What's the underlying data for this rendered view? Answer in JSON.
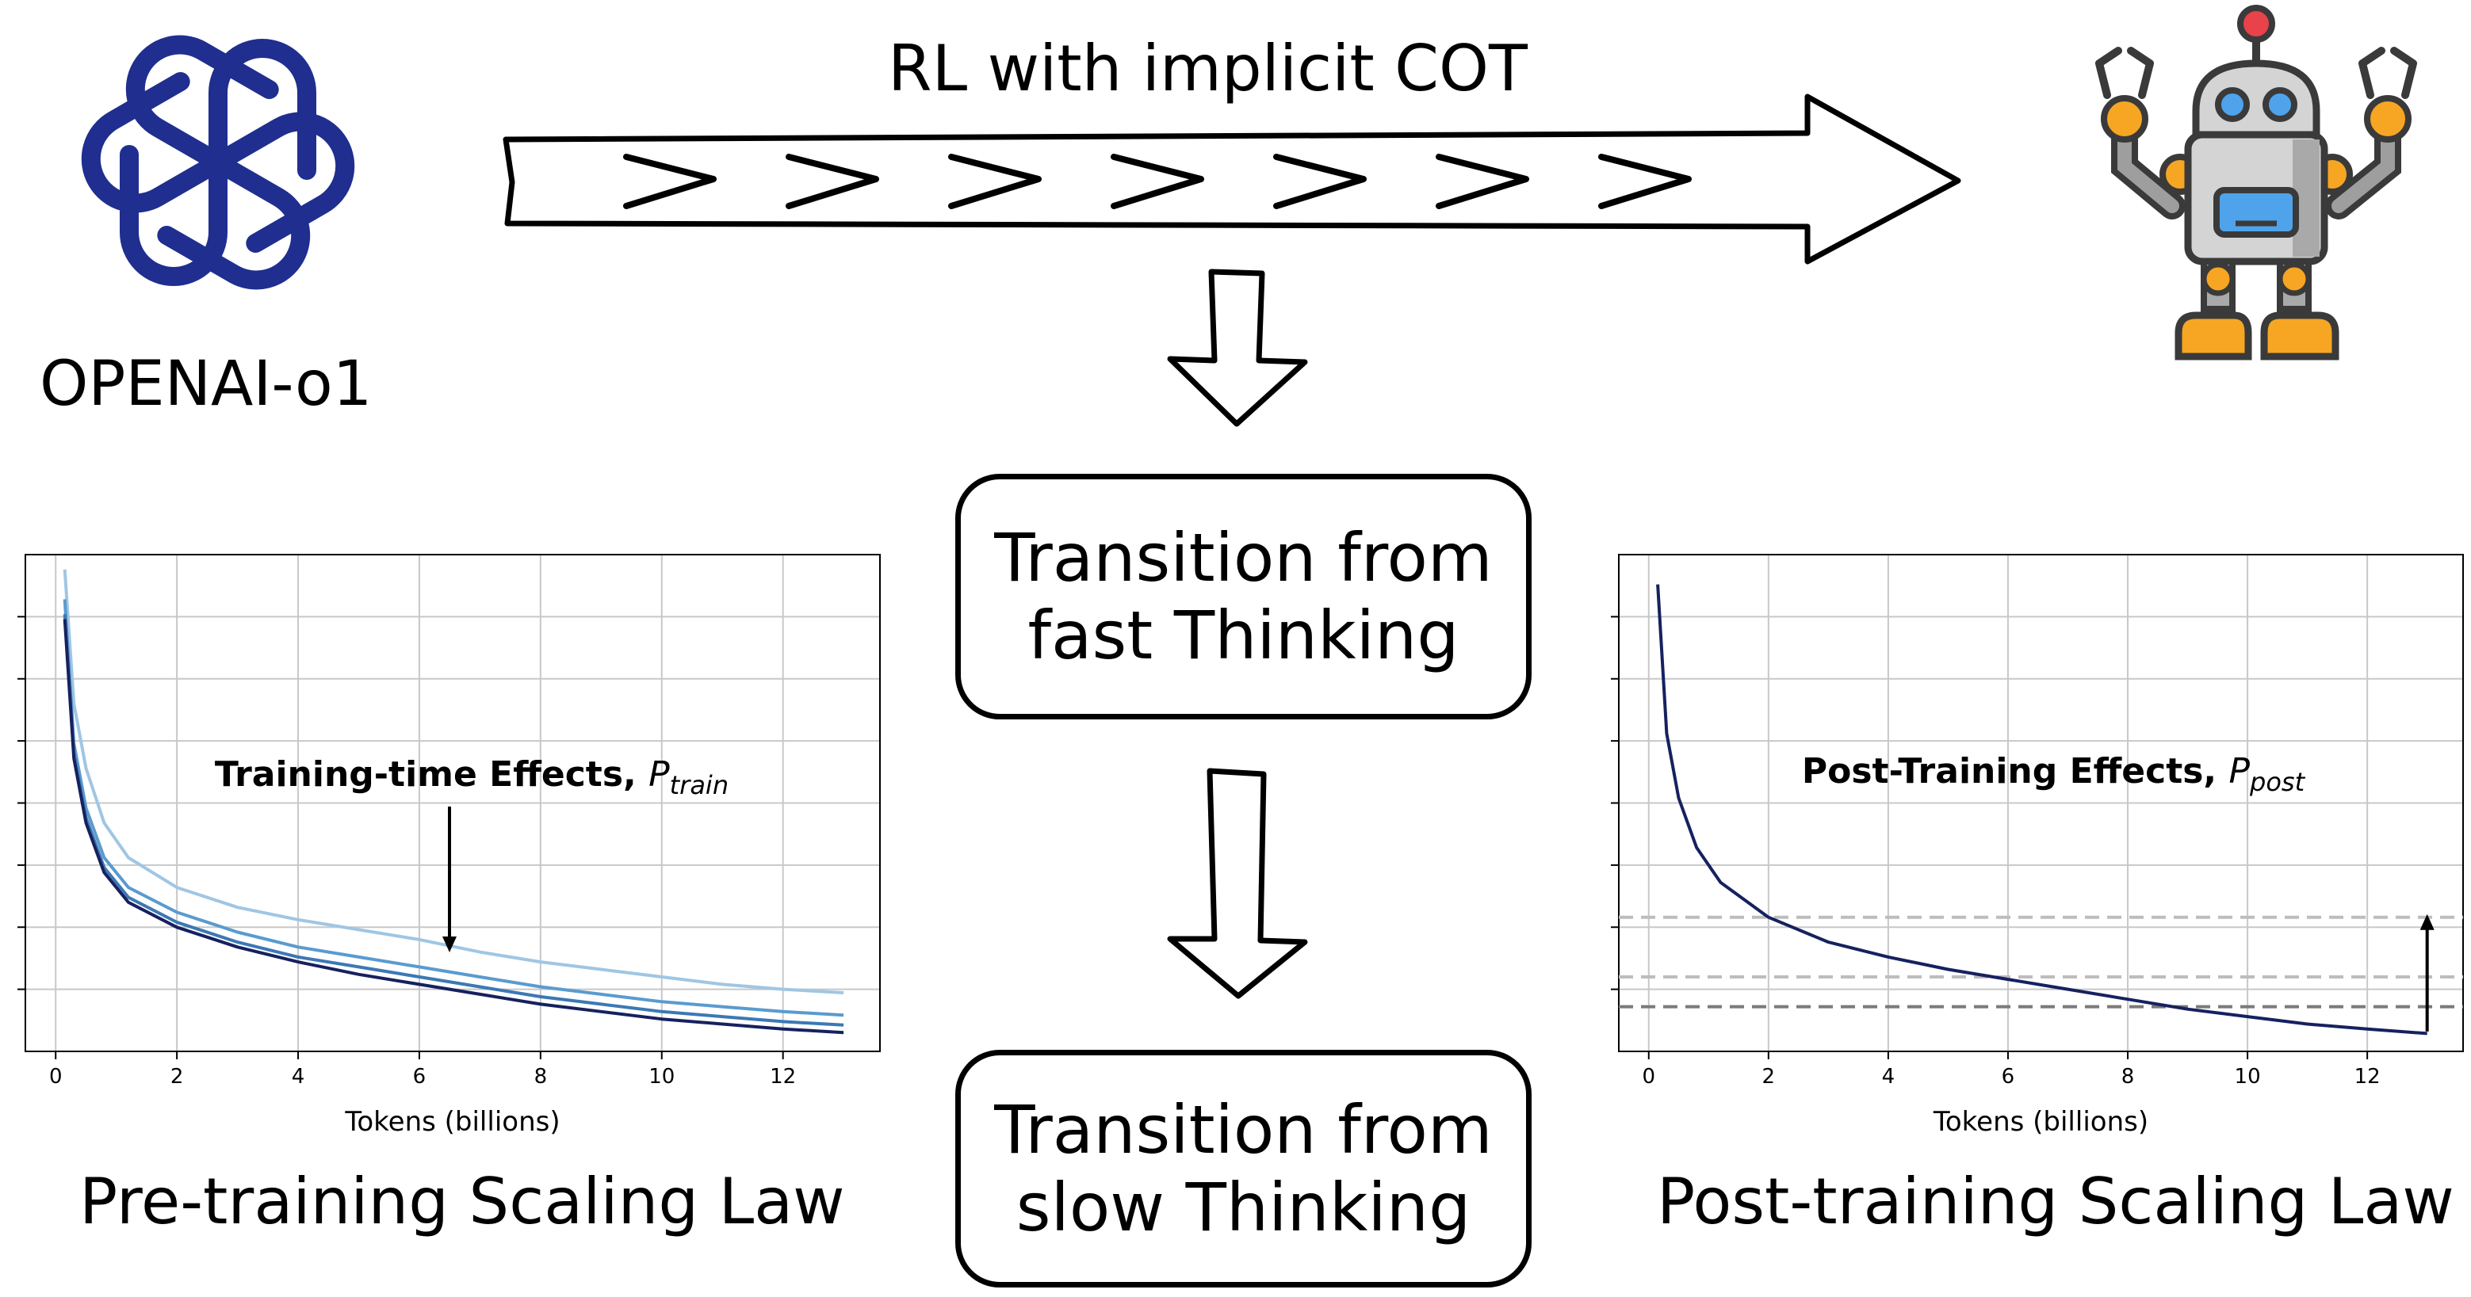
{
  "logo": {
    "label": "OPENAI-o1"
  },
  "top_arrow": {
    "label": "RL with implicit COT"
  },
  "boxes": [
    {
      "line1": "Transition from",
      "line2": "fast Thinking"
    },
    {
      "line1": "Transition from",
      "line2": "slow Thinking"
    }
  ],
  "colors": {
    "openai_blue": "#1f2e8f",
    "series_light": "#9fc6e4",
    "series_mid": "#5a9bcf",
    "series_dark": "#16215f",
    "robot_orange": "#f6a623",
    "robot_gray": "#d4d4d4",
    "robot_screen": "#4fa3ea",
    "robot_antenna": "#e8424a"
  },
  "charts": [
    {
      "caption": "Pre-training Scaling Law",
      "annotation": "Training-time Effects,",
      "annotation_symbol": "P",
      "annotation_sub": "train",
      "chart_data": {
        "type": "line",
        "xlabel": "Tokens (billions)",
        "ylabel": "",
        "xticks": [
          "0",
          "2",
          "4",
          "6",
          "8",
          "10",
          "12"
        ],
        "xlim": [
          -0.5,
          13.6
        ],
        "ylim": [
          0,
          1
        ],
        "grid": true,
        "series": [
          {
            "color": "#9fc6e4",
            "x": [
              0.15,
              0.3,
              0.5,
              0.8,
              1.2,
              2,
              3,
              4,
              5,
              6,
              7,
              8,
              9,
              10,
              11,
              12,
              13
            ],
            "y": [
              0.97,
              0.7,
              0.57,
              0.46,
              0.39,
              0.33,
              0.29,
              0.265,
              0.245,
              0.225,
              0.2,
              0.18,
              0.165,
              0.15,
              0.135,
              0.125,
              0.118
            ]
          },
          {
            "color": "#5a9bcf",
            "x": [
              0.15,
              0.3,
              0.5,
              0.8,
              1.2,
              2,
              3,
              4,
              5,
              6,
              7,
              8,
              9,
              10,
              11,
              12,
              13
            ],
            "y": [
              0.91,
              0.62,
              0.49,
              0.39,
              0.33,
              0.28,
              0.24,
              0.21,
              0.19,
              0.17,
              0.15,
              0.13,
              0.115,
              0.1,
              0.09,
              0.08,
              0.073
            ]
          },
          {
            "color": "#3c78b4",
            "x": [
              0.15,
              0.3,
              0.5,
              0.8,
              1.2,
              2,
              3,
              4,
              5,
              6,
              7,
              8,
              9,
              10,
              11,
              12,
              13
            ],
            "y": [
              0.88,
              0.6,
              0.47,
              0.37,
              0.31,
              0.26,
              0.22,
              0.19,
              0.17,
              0.15,
              0.13,
              0.11,
              0.095,
              0.08,
              0.07,
              0.06,
              0.053
            ]
          },
          {
            "color": "#16215f",
            "x": [
              0.15,
              0.3,
              0.5,
              0.8,
              1.2,
              2,
              3,
              4,
              5,
              6,
              7,
              8,
              9,
              10,
              11,
              12,
              13
            ],
            "y": [
              0.87,
              0.59,
              0.46,
              0.36,
              0.3,
              0.25,
              0.21,
              0.18,
              0.155,
              0.135,
              0.115,
              0.095,
              0.08,
              0.065,
              0.055,
              0.045,
              0.038
            ]
          }
        ]
      }
    },
    {
      "caption": "Post-training Scaling Law",
      "annotation": "Post-Training Effects,",
      "annotation_symbol": "P",
      "annotation_sub": "post",
      "chart_data": {
        "type": "line",
        "xlabel": "Tokens (billions)",
        "ylabel": "",
        "xticks": [
          "0",
          "2",
          "4",
          "6",
          "8",
          "10",
          "12"
        ],
        "xlim": [
          -0.5,
          13.6
        ],
        "ylim": [
          0,
          1
        ],
        "grid": true,
        "reference_lines": [
          0.27,
          0.15,
          0.09
        ],
        "series": [
          {
            "color": "#16215f",
            "x": [
              0.15,
              0.3,
              0.5,
              0.8,
              1.2,
              2,
              3,
              4,
              5,
              6,
              7,
              8,
              9,
              10,
              11,
              12,
              13
            ],
            "y": [
              0.94,
              0.64,
              0.51,
              0.41,
              0.34,
              0.27,
              0.22,
              0.19,
              0.165,
              0.145,
              0.125,
              0.105,
              0.085,
              0.07,
              0.055,
              0.045,
              0.036
            ]
          }
        ]
      }
    }
  ]
}
